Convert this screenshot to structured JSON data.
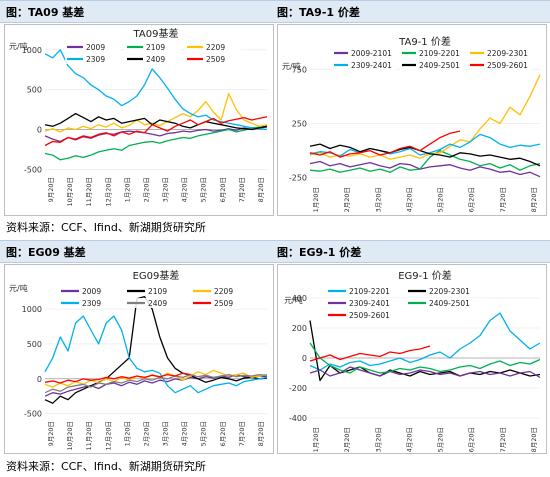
{
  "figures": {
    "left_top": "图：TA09 基差",
    "right_top": "图：TA9-1 价差",
    "left_bottom": "图：EG09 基差",
    "right_bottom": "图：EG9-1 价差"
  },
  "source_note": "资料来源：CCF、Ifind、新湖期货研究所",
  "chart_data": [
    {
      "id": "ta09",
      "type": "line",
      "title": "TA09基差",
      "ylabel": "元/吨",
      "yticks": [
        -500,
        0,
        500,
        1000
      ],
      "ylim": [
        -520,
        1060
      ],
      "xticks": [
        "9月20日",
        "10月20日",
        "11月20日",
        "12月20日",
        "1月20日",
        "2月20日",
        "3月20日",
        "4月20日",
        "5月20日",
        "6月20日",
        "7月20日",
        "8月20日"
      ],
      "series": [
        {
          "name": "2009",
          "color": "#7030a0",
          "values": [
            -80,
            -120,
            -150,
            -100,
            -130,
            -90,
            -110,
            -70,
            -50,
            -60,
            -30,
            -20,
            -30,
            -40,
            -60,
            -80,
            -50,
            -40,
            -20,
            -30,
            -10,
            0,
            -20,
            -10,
            10,
            -10,
            20,
            0,
            20,
            30
          ]
        },
        {
          "name": "2109",
          "color": "#00b050",
          "values": [
            -300,
            -320,
            -380,
            -360,
            -330,
            -350,
            -320,
            -280,
            -260,
            -240,
            -260,
            -200,
            -180,
            -160,
            -150,
            -170,
            -140,
            -120,
            -100,
            -110,
            -80,
            -60,
            -40,
            -20,
            0,
            -30,
            -10,
            20,
            30,
            40
          ]
        },
        {
          "name": "2209",
          "color": "#ffc000",
          "values": [
            -20,
            10,
            -30,
            20,
            0,
            40,
            10,
            60,
            30,
            80,
            20,
            50,
            120,
            60,
            80,
            50,
            100,
            150,
            200,
            160,
            240,
            350,
            220,
            120,
            450,
            250,
            120,
            80,
            40,
            60
          ]
        },
        {
          "name": "2309",
          "color": "#00b0f0",
          "values": [
            950,
            900,
            1000,
            800,
            700,
            650,
            560,
            500,
            420,
            380,
            300,
            350,
            420,
            560,
            760,
            650,
            520,
            380,
            260,
            200,
            160,
            180,
            120,
            100,
            80,
            60,
            40,
            20,
            10,
            0
          ]
        },
        {
          "name": "2409",
          "color": "#000000",
          "values": [
            60,
            40,
            80,
            140,
            200,
            150,
            100,
            160,
            120,
            140,
            80,
            100,
            120,
            140,
            60,
            120,
            100,
            80,
            40,
            20,
            60,
            100,
            80,
            60,
            40,
            20,
            10,
            0,
            20,
            40
          ]
        },
        {
          "name": "2509",
          "color": "#ff0000",
          "values": [
            -200,
            -150,
            -160,
            -100,
            -120,
            -80,
            -100,
            -60,
            -40,
            -80,
            -30,
            -60,
            -20,
            -40,
            60,
            20,
            -20,
            40,
            80,
            120,
            60,
            100,
            140,
            80,
            110,
            130,
            150,
            120,
            140,
            160
          ]
        }
      ]
    },
    {
      "id": "ta91",
      "type": "line",
      "title": "TA9-1 价差",
      "ylabel": "元/吨",
      "yticks": [
        -250,
        250,
        750
      ],
      "ylim": [
        -280,
        900
      ],
      "xticks": [
        "1月20日",
        "2月20日",
        "3月20日",
        "4月20日",
        "5月20日",
        "6月20日",
        "7月20日",
        "8月20日"
      ],
      "series": [
        {
          "name": "2009-2101",
          "color": "#7030a0",
          "values": [
            -120,
            -100,
            -140,
            -120,
            -150,
            -130,
            -110,
            -140,
            -160,
            -120,
            -130,
            -170,
            -150,
            -140,
            -130,
            -160,
            -180,
            -150,
            -170,
            -200,
            -190,
            -220,
            -200,
            -240
          ]
        },
        {
          "name": "2109-2201",
          "color": "#00b050",
          "values": [
            -180,
            -190,
            -170,
            -200,
            -180,
            -160,
            -190,
            -170,
            -200,
            -150,
            -180,
            -170,
            -60,
            0,
            -40,
            -80,
            -100,
            -140,
            -120,
            -160,
            -130,
            -180,
            -140,
            -120
          ]
        },
        {
          "name": "2209-2301",
          "color": "#ffc000",
          "values": [
            -40,
            -20,
            -60,
            -40,
            -50,
            -30,
            -60,
            -40,
            -80,
            -60,
            -40,
            -70,
            -30,
            -20,
            40,
            100,
            80,
            200,
            300,
            250,
            400,
            330,
            500,
            700
          ]
        },
        {
          "name": "2309-2401",
          "color": "#00b0f0",
          "values": [
            -30,
            -10,
            -20,
            -50,
            10,
            -20,
            20,
            0,
            -30,
            -10,
            20,
            -40,
            -20,
            10,
            60,
            30,
            80,
            150,
            120,
            60,
            30,
            50,
            40,
            60
          ]
        },
        {
          "name": "2409-2501",
          "color": "#000000",
          "values": [
            40,
            60,
            20,
            50,
            30,
            -10,
            20,
            0,
            -20,
            10,
            30,
            0,
            -30,
            -40,
            -60,
            -20,
            -30,
            -50,
            -40,
            -60,
            -80,
            -70,
            -100,
            -140
          ]
        },
        {
          "name": "2509-2601",
          "color": "#ff0000",
          "values": [
            -20,
            -40,
            -10,
            -60,
            -30,
            -20,
            0,
            -40,
            -20,
            20,
            40,
            0,
            60,
            120,
            160,
            180,
            null,
            null,
            null,
            null,
            null,
            null,
            null,
            null
          ]
        }
      ]
    },
    {
      "id": "eg09",
      "type": "line",
      "title": "EG09基差",
      "ylabel": "元/吨",
      "yticks": [
        -500,
        0,
        500,
        1000
      ],
      "ylim": [
        -520,
        1260
      ],
      "xticks": [
        "9月20日",
        "10月20日",
        "11月20日",
        "12月20日",
        "1月20日",
        "2月20日",
        "3月20日",
        "4月20日",
        "5月20日",
        "6月20日",
        "7月20日",
        "8月20日"
      ],
      "series": [
        {
          "name": "2009",
          "color": "#7030a0",
          "values": [
            -250,
            -200,
            -220,
            -180,
            -150,
            -120,
            -100,
            -140,
            -80,
            -60,
            -100,
            -50,
            -80,
            -30,
            -60,
            -20,
            -40,
            0,
            -20,
            20,
            0,
            30,
            10,
            40,
            20,
            60,
            30,
            20,
            40,
            30
          ]
        },
        {
          "name": "2109",
          "color": "#000000",
          "values": [
            -300,
            -350,
            -250,
            -300,
            -200,
            -150,
            -100,
            -50,
            0,
            100,
            200,
            300,
            1150,
            1180,
            1000,
            600,
            300,
            150,
            80,
            50,
            0,
            -50,
            -20,
            20,
            0,
            -30,
            10,
            20,
            0,
            10
          ]
        },
        {
          "name": "2209",
          "color": "#ffc000",
          "values": [
            -80,
            -120,
            -60,
            -100,
            -40,
            -80,
            -20,
            -60,
            0,
            -40,
            20,
            -20,
            40,
            0,
            60,
            20,
            80,
            40,
            -20,
            40,
            100,
            60,
            120,
            80,
            40,
            60,
            80,
            20,
            40,
            60
          ]
        },
        {
          "name": "2309",
          "color": "#00b0f0",
          "values": [
            100,
            300,
            600,
            400,
            800,
            900,
            700,
            500,
            800,
            900,
            700,
            300,
            150,
            100,
            120,
            80,
            -100,
            -200,
            -150,
            -100,
            -200,
            -150,
            -100,
            -80,
            -60,
            -100,
            -40,
            -20,
            0,
            20
          ]
        },
        {
          "name": "2409",
          "color": "#7f7f7f",
          "values": [
            -200,
            -150,
            -180,
            -120,
            -100,
            -80,
            -120,
            -60,
            -80,
            -40,
            -60,
            -20,
            -40,
            0,
            -20,
            20,
            0,
            40,
            20,
            60,
            30,
            50,
            20,
            40,
            60,
            30,
            50,
            40,
            60,
            50
          ]
        },
        {
          "name": "2509",
          "color": "#ff0000",
          "values": [
            -50,
            -30,
            -60,
            -20,
            -40,
            0,
            -20,
            -10,
            20,
            0,
            30,
            10,
            40,
            20,
            50,
            30,
            60,
            40,
            80,
            60,
            null,
            null,
            null,
            null,
            null,
            null,
            null,
            null,
            null,
            null
          ]
        }
      ]
    },
    {
      "id": "eg91",
      "type": "line",
      "title": "EG9-1 价差",
      "ylabel": "元/吨",
      "yticks": [
        -400,
        -200,
        0,
        200,
        400
      ],
      "ylim": [
        -420,
        460
      ],
      "xticks": [
        "1月20日",
        "2月20日",
        "3月20日",
        "4月20日",
        "5月20日",
        "6月20日",
        "7月20日",
        "8月20日"
      ],
      "series": [
        {
          "name": "2109-2201",
          "color": "#00b0f0",
          "values": [
            -50,
            -80,
            -40,
            -60,
            -30,
            -20,
            -50,
            -40,
            -20,
            0,
            -30,
            -10,
            20,
            40,
            0,
            60,
            100,
            150,
            250,
            300,
            180,
            120,
            60,
            100
          ]
        },
        {
          "name": "2209-2301",
          "color": "#000000",
          "values": [
            250,
            -150,
            -50,
            -100,
            -80,
            -60,
            -100,
            -120,
            -80,
            -100,
            -120,
            -90,
            -110,
            -100,
            -90,
            -120,
            -100,
            -110,
            -90,
            -100,
            -80,
            -100,
            -120,
            -110
          ]
        },
        {
          "name": "2309-2401",
          "color": "#7030a0",
          "values": [
            -100,
            -80,
            -120,
            -100,
            -60,
            -80,
            -100,
            -120,
            -90,
            -110,
            -100,
            -80,
            -90,
            -110,
            -100,
            -120,
            -100,
            -90,
            -110,
            -100,
            -120,
            -100,
            -90,
            -130
          ]
        },
        {
          "name": "2409-2501",
          "color": "#00b050",
          "values": [
            100,
            0,
            -50,
            -80,
            -100,
            -60,
            -80,
            -100,
            -90,
            -70,
            -80,
            -60,
            -70,
            -90,
            -80,
            -60,
            -50,
            -70,
            -40,
            -20,
            -50,
            -30,
            -40,
            -10
          ]
        },
        {
          "name": "2509-2601",
          "color": "#ff0000",
          "values": [
            -20,
            0,
            20,
            -10,
            10,
            30,
            20,
            10,
            40,
            30,
            50,
            60,
            80,
            null,
            null,
            null,
            null,
            null,
            null,
            null,
            null,
            null,
            null,
            null
          ]
        }
      ]
    }
  ]
}
